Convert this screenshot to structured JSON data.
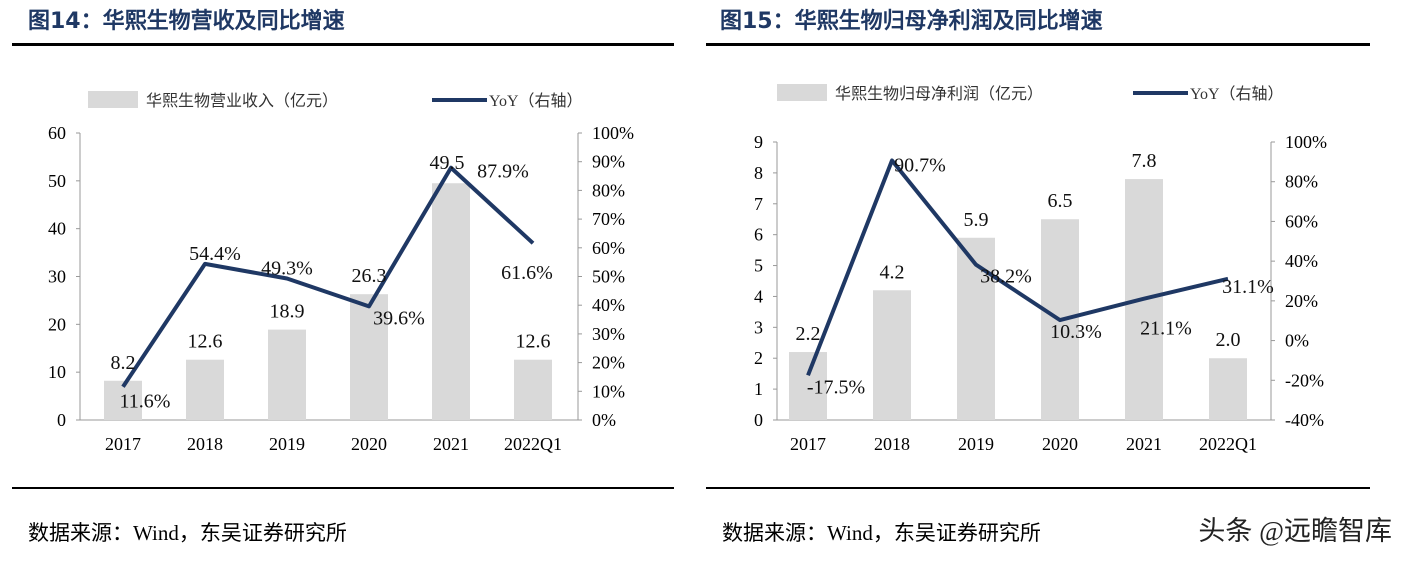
{
  "colors": {
    "bar": "#d9d9d9",
    "line": "#1f3864",
    "title": "#1f3864"
  },
  "watermark": "头条 @远瞻智库",
  "chart_data": [
    {
      "type": "bar+line",
      "title": "图14：华熙生物营收及同比增速",
      "source": "数据来源：Wind，东吴证券研究所",
      "categories": [
        "2017",
        "2018",
        "2019",
        "2020",
        "2021",
        "2022Q1"
      ],
      "legend_position": "top",
      "series": [
        {
          "name": "华熙生物营业收入（亿元）",
          "type": "bar",
          "axis": "left",
          "values": [
            8.2,
            12.6,
            18.9,
            26.3,
            49.5,
            12.6
          ],
          "labels": [
            "8.2",
            "12.6",
            "18.9",
            "26.3",
            "49.5",
            "12.6"
          ]
        },
        {
          "name": "YoY（右轴）",
          "type": "line",
          "axis": "right",
          "values": [
            11.6,
            54.4,
            49.3,
            39.6,
            87.9,
            61.6
          ],
          "labels": [
            "11.6%",
            "54.4%",
            "49.3%",
            "39.6%",
            "87.9%",
            "61.6%"
          ]
        }
      ],
      "ylim": [
        0,
        60
      ],
      "yticks": [
        0,
        10,
        20,
        30,
        40,
        50,
        60
      ],
      "y2lim": [
        0,
        100
      ],
      "y2ticks": [
        "0%",
        "10%",
        "20%",
        "30%",
        "40%",
        "50%",
        "60%",
        "70%",
        "80%",
        "90%",
        "100%"
      ],
      "grid": false
    },
    {
      "type": "bar+line",
      "title": "图15：华熙生物归母净利润及同比增速",
      "source": "数据来源：Wind，东吴证券研究所",
      "categories": [
        "2017",
        "2018",
        "2019",
        "2020",
        "2021",
        "2022Q1"
      ],
      "legend_position": "top",
      "series": [
        {
          "name": "华熙生物归母净利润（亿元）",
          "type": "bar",
          "axis": "left",
          "values": [
            2.2,
            4.2,
            5.9,
            6.5,
            7.8,
            2.0
          ],
          "labels": [
            "2.2",
            "4.2",
            "5.9",
            "6.5",
            "7.8",
            "2.0"
          ]
        },
        {
          "name": "YoY（右轴）",
          "type": "line",
          "axis": "right",
          "values": [
            -17.5,
            90.7,
            38.2,
            10.3,
            21.1,
            31.1
          ],
          "labels": [
            "-17.5%",
            "90.7%",
            "38.2%",
            "10.3%",
            "21.1%",
            "31.1%"
          ]
        }
      ],
      "ylim": [
        0,
        9
      ],
      "yticks": [
        0,
        1,
        2,
        3,
        4,
        5,
        6,
        7,
        8,
        9
      ],
      "y2lim": [
        -40,
        100
      ],
      "y2ticks": [
        "-40%",
        "-20%",
        "0%",
        "20%",
        "40%",
        "60%",
        "80%",
        "100%"
      ],
      "grid": false
    }
  ]
}
